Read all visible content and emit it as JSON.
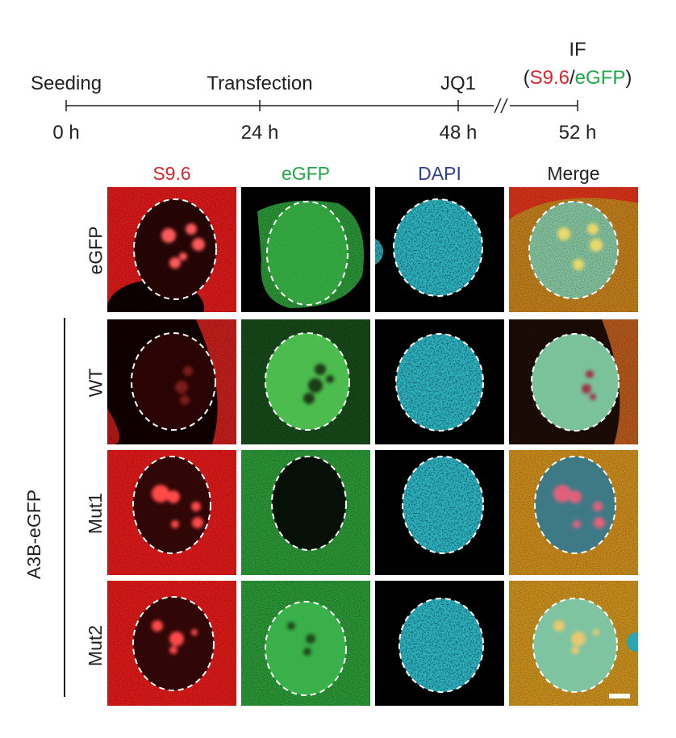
{
  "timeline": {
    "events": [
      {
        "label": "Seeding",
        "time": "0 h"
      },
      {
        "label": "Transfection",
        "time": "24 h"
      },
      {
        "label": "JQ1",
        "time": "48 h"
      },
      {
        "label_line1": "IF",
        "label_open": "(",
        "label_s96": "S9.6",
        "label_slash": "/",
        "label_egfp": "eGFP",
        "label_close": ")",
        "time": "52 h"
      }
    ]
  },
  "columns": [
    "S9.6",
    "eGFP",
    "DAPI",
    "Merge"
  ],
  "rows": [
    "eGFP",
    "WT",
    "Mut1",
    "Mut2"
  ],
  "group_label": "A3B-eGFP",
  "colors": {
    "s96": "#d7262e",
    "egfp": "#1fa84a",
    "dapi": "#2d3f8f",
    "text": "#231f20"
  }
}
